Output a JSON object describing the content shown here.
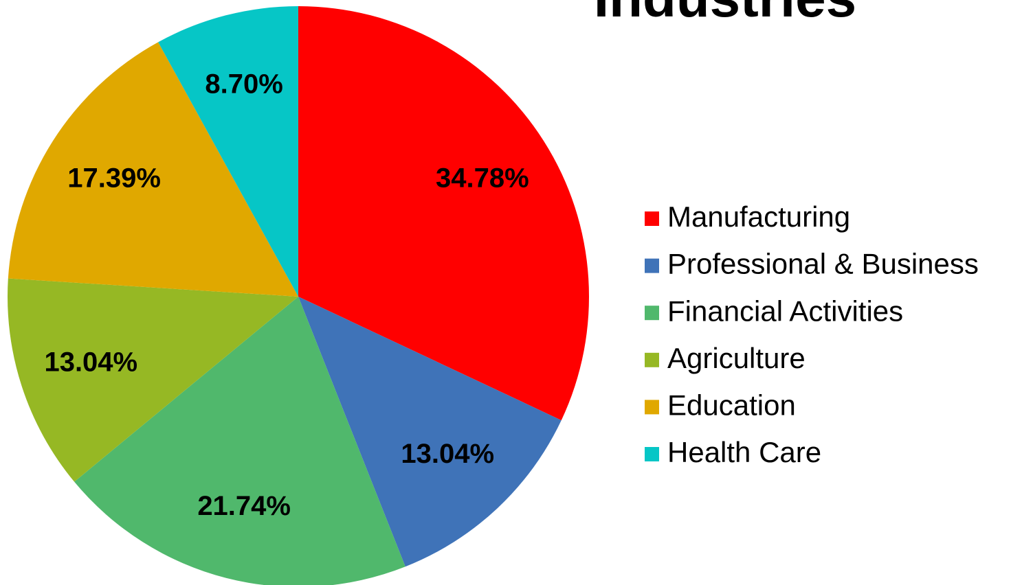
{
  "chart_data": {
    "type": "pie",
    "title": "Industries",
    "categories": [
      "Manufacturing",
      "Professional & Business",
      "Financial Activities",
      "Agriculture",
      "Education",
      "Health Care"
    ],
    "values": [
      34.78,
      13.04,
      21.74,
      13.04,
      17.39,
      8.7
    ],
    "value_labels": [
      "34.78%",
      "13.04%",
      "21.74%",
      "13.04%",
      "17.39%",
      "8.70%"
    ],
    "colors": [
      "#ff0000",
      "#3f73b8",
      "#50b86c",
      "#96b824",
      "#e0a800",
      "#06c6c6"
    ],
    "legend": "right"
  }
}
